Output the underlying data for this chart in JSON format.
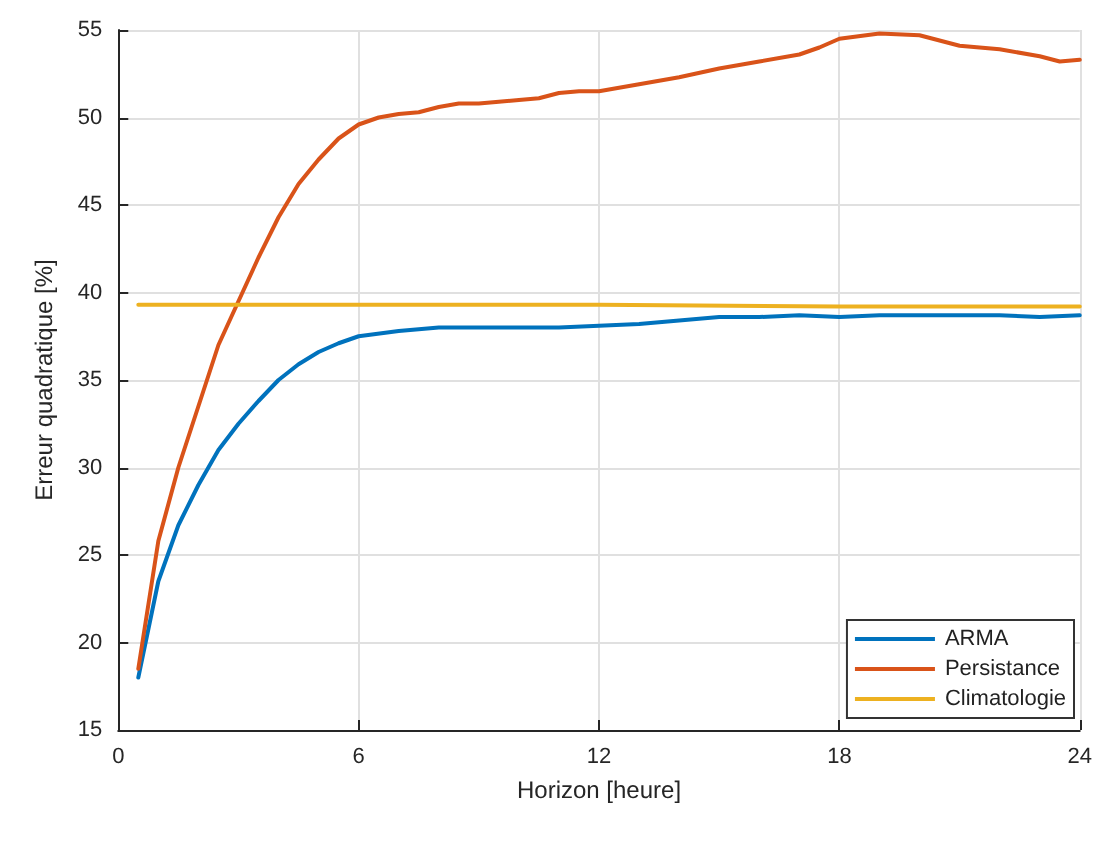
{
  "chart_data": {
    "type": "line",
    "xlabel": "Horizon [heure]",
    "ylabel": "Erreur quadratique [%]",
    "xlim": [
      0,
      24
    ],
    "xticks": [
      0,
      6,
      12,
      18,
      24
    ],
    "ylim": [
      15,
      55
    ],
    "yticks": [
      15,
      20,
      25,
      30,
      35,
      40,
      45,
      50,
      55
    ],
    "grid": true,
    "legend": "bottom right",
    "marker": "none",
    "line_style": "solid",
    "series": [
      {
        "name": "ARMA",
        "color": "#0072bd",
        "x": [
          0.5,
          1,
          1.5,
          2,
          2.5,
          3,
          3.5,
          4,
          4.5,
          5,
          5.5,
          6,
          7,
          8,
          9,
          10,
          11,
          12,
          13,
          14,
          15,
          16,
          17,
          18,
          19,
          20,
          21,
          22,
          23,
          24
        ],
        "values": [
          18,
          23.5,
          26.7,
          29,
          31,
          32.5,
          33.8,
          35,
          35.9,
          36.6,
          37.1,
          37.5,
          37.8,
          38,
          38,
          38,
          38,
          38.1,
          38.2,
          38.4,
          38.6,
          38.6,
          38.7,
          38.6,
          38.7,
          38.7,
          38.7,
          38.7,
          38.6,
          38.7
        ]
      },
      {
        "name": "Persistance",
        "color": "#d95319",
        "x": [
          0.5,
          1,
          1.5,
          2,
          2.5,
          3,
          3.5,
          4,
          4.5,
          5,
          5.5,
          6,
          6.5,
          7,
          7.5,
          8,
          8.5,
          9,
          9.5,
          10,
          10.5,
          11,
          11.5,
          12,
          13,
          14,
          15,
          16,
          17,
          17.5,
          18,
          19,
          20,
          21,
          22,
          23,
          23.5,
          24
        ],
        "values": [
          18.5,
          25.8,
          30,
          33.5,
          37,
          39.5,
          42,
          44.3,
          46.2,
          47.6,
          48.8,
          49.6,
          50,
          50.2,
          50.3,
          50.6,
          50.8,
          50.8,
          50.9,
          51,
          51.1,
          51.4,
          51.5,
          51.5,
          51.9,
          52.3,
          52.8,
          53.2,
          53.6,
          54,
          54.5,
          54.8,
          54.7,
          54.1,
          53.9,
          53.5,
          53.2,
          53.3
        ]
      },
      {
        "name": "Climatologie",
        "color": "#edb120",
        "x": [
          0.5,
          6,
          12,
          18,
          24
        ],
        "values": [
          39.3,
          39.3,
          39.3,
          39.2,
          39.2
        ]
      }
    ]
  }
}
